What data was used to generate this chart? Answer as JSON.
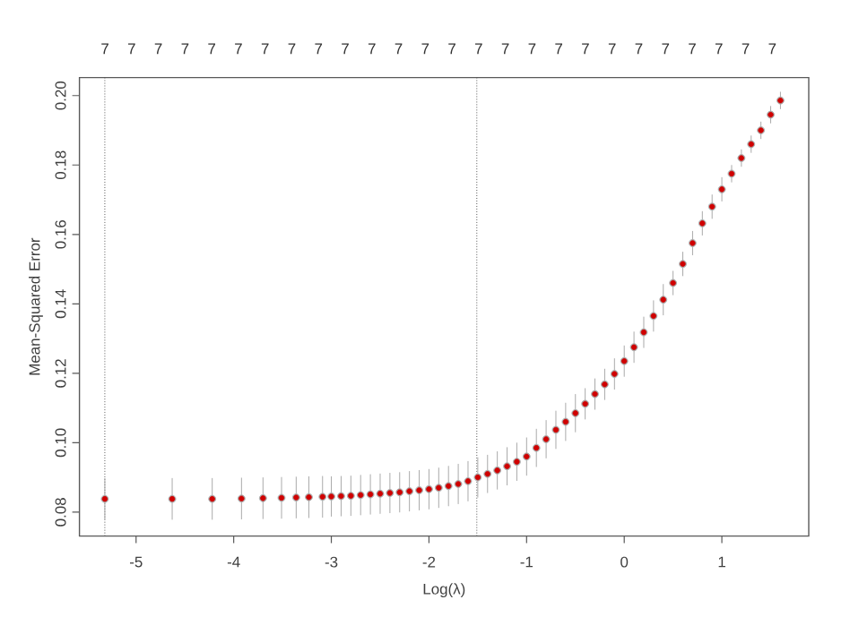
{
  "chart_data": {
    "type": "scatter",
    "xlabel": "Log(λ)",
    "ylabel": "Mean-Squared Error",
    "xlim": [
      -5.58,
      1.89
    ],
    "ylim": [
      0.0731,
      0.2052
    ],
    "xticks": [
      -5,
      -4,
      -3,
      -2,
      -1,
      0,
      1
    ],
    "yticks": [
      {
        "value": 0.08,
        "label": "0.08"
      },
      {
        "value": 0.1,
        "label": "0.10"
      },
      {
        "value": 0.12,
        "label": "0.12"
      },
      {
        "value": 0.14,
        "label": "0.14"
      },
      {
        "value": 0.16,
        "label": "0.16"
      },
      {
        "value": 0.18,
        "label": "0.18"
      },
      {
        "value": 0.2,
        "label": "0.20"
      }
    ],
    "annotations": [
      "7",
      "7",
      "7",
      "7",
      "7",
      "7",
      "7",
      "7",
      "7",
      "7",
      "7",
      "7",
      "7",
      "7",
      "7",
      "7",
      "7",
      "7",
      "7",
      "7",
      "7",
      "7",
      "7",
      "7",
      "7",
      "7"
    ],
    "ref_lines": [
      {
        "axis": "x",
        "value": -5.32,
        "color": "#555555",
        "line_style": "dotted"
      },
      {
        "axis": "x",
        "value": -1.51,
        "color": "#555555",
        "line_style": "dotted"
      }
    ],
    "series": [
      {
        "color": "#d00000",
        "x": [
          -5.32,
          -4.63,
          -4.22,
          -3.92,
          -3.7,
          -3.51,
          -3.36,
          -3.23,
          -3.09,
          -3.0,
          -2.9,
          -2.8,
          -2.7,
          -2.6,
          -2.5,
          -2.4,
          -2.3,
          -2.2,
          -2.1,
          -2.0,
          -1.9,
          -1.8,
          -1.7,
          -1.6,
          -1.5,
          -1.4,
          -1.3,
          -1.2,
          -1.1,
          -1.0,
          -0.9,
          -0.8,
          -0.7,
          -0.6,
          -0.5,
          -0.4,
          -0.3,
          -0.2,
          -0.1,
          0.0,
          0.1,
          0.2,
          0.3,
          0.4,
          0.5,
          0.6,
          0.7,
          0.8,
          0.9,
          1.0,
          1.1,
          1.2,
          1.3,
          1.4,
          1.5,
          1.6
        ],
        "values": [
          0.0838,
          0.0838,
          0.0838,
          0.0839,
          0.084,
          0.0841,
          0.0842,
          0.0843,
          0.0844,
          0.0845,
          0.0846,
          0.0847,
          0.0849,
          0.0851,
          0.0853,
          0.0855,
          0.0857,
          0.086,
          0.0863,
          0.0866,
          0.087,
          0.0875,
          0.0881,
          0.0889,
          0.09,
          0.091,
          0.092,
          0.0932,
          0.0945,
          0.096,
          0.0985,
          0.101,
          0.1037,
          0.106,
          0.1085,
          0.1112,
          0.114,
          0.1168,
          0.1198,
          0.1235,
          0.1275,
          0.1318,
          0.1365,
          0.1412,
          0.146,
          0.1515,
          0.1575,
          0.1632,
          0.168,
          0.173,
          0.1775,
          0.182,
          0.186,
          0.19,
          0.1945,
          0.1986
        ],
        "errors": [
          0.006,
          0.006,
          0.006,
          0.006,
          0.006,
          0.006,
          0.006,
          0.006,
          0.006,
          0.0058,
          0.0058,
          0.0058,
          0.0058,
          0.0058,
          0.0058,
          0.0058,
          0.0058,
          0.0058,
          0.0058,
          0.0058,
          0.0058,
          0.0058,
          0.0058,
          0.0058,
          0.0058,
          0.0055,
          0.0055,
          0.0055,
          0.0055,
          0.0055,
          0.0055,
          0.0055,
          0.0055,
          0.0055,
          0.0055,
          0.0045,
          0.0045,
          0.0045,
          0.0045,
          0.0045,
          0.0045,
          0.0045,
          0.0045,
          0.0045,
          0.0035,
          0.0035,
          0.0035,
          0.0035,
          0.0035,
          0.0035,
          0.0025,
          0.0025,
          0.0025,
          0.0025,
          0.0025,
          0.0025
        ]
      }
    ]
  }
}
